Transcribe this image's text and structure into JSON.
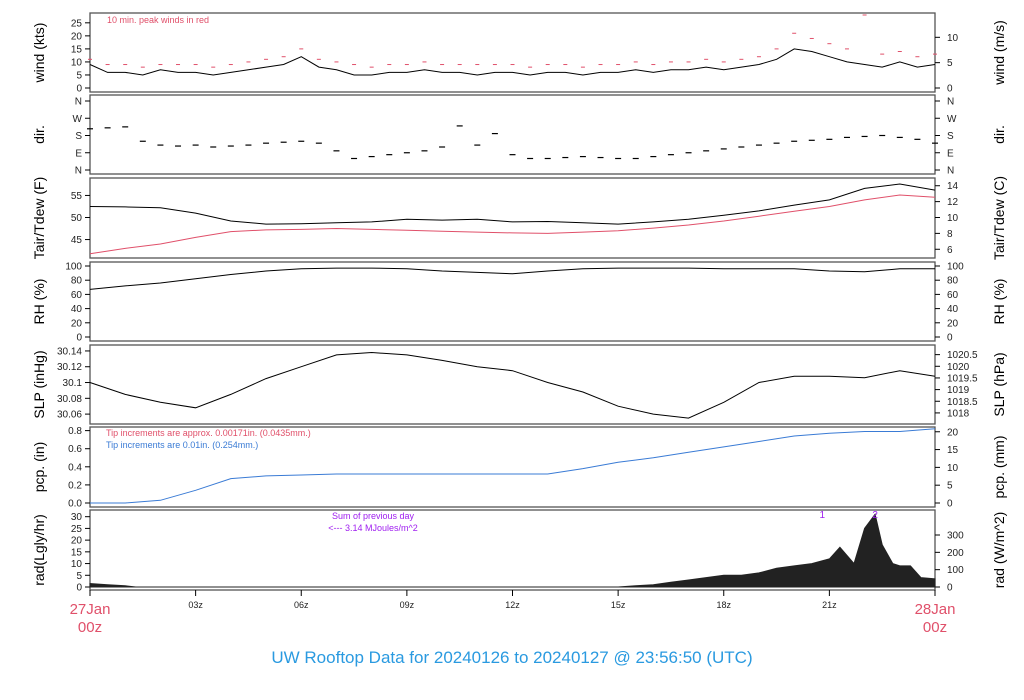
{
  "title": "UW Rooftop Data for 20240126  to  20240127 @ 23:56:50  (UTC)",
  "colors": {
    "accent_red": "#e0506a",
    "blue": "#3a7bd5",
    "purple": "#a020f0",
    "line": "#000000",
    "title": "#2a9ae0"
  },
  "x_axis": {
    "start_label": [
      "27Jan",
      "00z"
    ],
    "end_label": [
      "28Jan",
      "00z"
    ],
    "ticks": [
      "03z",
      "06z",
      "09z",
      "12z",
      "15z",
      "18z",
      "21z"
    ],
    "tick_hours": [
      3,
      6,
      9,
      12,
      15,
      18,
      21
    ],
    "range_hours": [
      0,
      24
    ]
  },
  "chart_data": [
    {
      "type": "line",
      "id": "wind",
      "ylabel": "wind (kts)",
      "ylabel_right": "wind (m/s)",
      "ylim": [
        0,
        28
      ],
      "yticks": [
        0,
        5,
        10,
        15,
        20,
        25
      ],
      "yticks_right": [
        0,
        5,
        10
      ],
      "annotation": "10 min. peak winds in red",
      "x": [
        0,
        0.5,
        1,
        1.5,
        2,
        2.5,
        3,
        3.5,
        4,
        4.5,
        5,
        5.5,
        6,
        6.5,
        7,
        7.5,
        8,
        8.5,
        9,
        9.5,
        10,
        10.5,
        11,
        11.5,
        12,
        12.5,
        13,
        13.5,
        14,
        14.5,
        15,
        15.5,
        16,
        16.5,
        17,
        17.5,
        18,
        18.5,
        19,
        19.5,
        20,
        20.5,
        21,
        21.5,
        22,
        22.5,
        23,
        23.5,
        24
      ],
      "series": [
        {
          "values": [
            9,
            6,
            6,
            5,
            7,
            6,
            6,
            5,
            6,
            7,
            8,
            9,
            12,
            8,
            7,
            5,
            5,
            6,
            6,
            7,
            6,
            6,
            5,
            6,
            6,
            5,
            6,
            6,
            5,
            6,
            6,
            7,
            6,
            7,
            7,
            8,
            7,
            8,
            9,
            11,
            15,
            14,
            12,
            10,
            9,
            8,
            10,
            8,
            9
          ]
        },
        {
          "name": "10 min. peak winds",
          "values": [
            11,
            9,
            9,
            8,
            9,
            9,
            9,
            8,
            9,
            10,
            11,
            12,
            15,
            11,
            10,
            9,
            8,
            9,
            9,
            10,
            9,
            9,
            9,
            9,
            9,
            8,
            9,
            9,
            8,
            9,
            9,
            10,
            9,
            10,
            10,
            11,
            10,
            11,
            12,
            15,
            21,
            19,
            17,
            15,
            28,
            13,
            14,
            12,
            13
          ]
        }
      ]
    },
    {
      "type": "scatter",
      "id": "dir",
      "ylabel": "dir.",
      "ylabel_right": "dir.",
      "ylim": [
        0,
        360
      ],
      "yticks": [
        "N",
        "E",
        "S",
        "W",
        "N"
      ],
      "ytick_values": [
        0,
        90,
        180,
        270,
        360
      ],
      "x": [
        0,
        0.5,
        1,
        1.5,
        2,
        2.5,
        3,
        3.5,
        4,
        4.5,
        5,
        5.5,
        6,
        6.5,
        7,
        7.5,
        8,
        8.5,
        9,
        9.5,
        10,
        10.5,
        11,
        11.5,
        12,
        12.5,
        13,
        13.5,
        14,
        14.5,
        15,
        15.5,
        16,
        16.5,
        17,
        17.5,
        18,
        18.5,
        19,
        19.5,
        20,
        20.5,
        21,
        21.5,
        22,
        22.5,
        23,
        23.5,
        24
      ],
      "values": [
        215,
        220,
        225,
        150,
        130,
        125,
        130,
        120,
        125,
        130,
        140,
        145,
        150,
        140,
        100,
        60,
        70,
        80,
        90,
        100,
        120,
        230,
        130,
        190,
        80,
        60,
        60,
        65,
        70,
        65,
        60,
        60,
        70,
        80,
        90,
        100,
        110,
        120,
        130,
        140,
        150,
        155,
        160,
        170,
        175,
        180,
        170,
        160,
        140
      ]
    },
    {
      "type": "line",
      "id": "temp",
      "ylabel": "Tair/Tdew (F)",
      "ylabel_right": "Tair/Tdew (C)",
      "ylim": [
        41.5,
        58.5
      ],
      "yticks": [
        45,
        50,
        55
      ],
      "yticks_right": [
        6,
        8,
        10,
        12,
        14
      ],
      "x": [
        0,
        1,
        2,
        3,
        4,
        5,
        6,
        7,
        8,
        9,
        10,
        11,
        12,
        13,
        14,
        15,
        16,
        17,
        18,
        19,
        20,
        21,
        22,
        23,
        24
      ],
      "series": [
        {
          "name": "Tair",
          "values": [
            52.5,
            52.4,
            52.2,
            51,
            49.2,
            48.5,
            48.6,
            48.8,
            49,
            49.6,
            49.4,
            49.6,
            49,
            49.1,
            48.8,
            48.5,
            49,
            49.6,
            50.5,
            51.5,
            52.8,
            54,
            56.6,
            57.6,
            56.2
          ]
        },
        {
          "name": "Tdew",
          "values": [
            41.8,
            43,
            44,
            45.5,
            46.8,
            47.2,
            47.3,
            47.5,
            47.3,
            47.1,
            46.9,
            46.7,
            46.5,
            46.4,
            46.7,
            47,
            47.6,
            48.3,
            49.2,
            50.3,
            51.4,
            52.5,
            54,
            55.1,
            54.6
          ]
        }
      ]
    },
    {
      "type": "line",
      "id": "rh",
      "ylabel": "RH (%)",
      "ylabel_right": "RH (%)",
      "ylim": [
        0,
        100
      ],
      "yticks": [
        0,
        20,
        40,
        60,
        80,
        100
      ],
      "x": [
        0,
        1,
        2,
        3,
        4,
        5,
        6,
        7,
        8,
        9,
        10,
        11,
        12,
        13,
        14,
        15,
        16,
        17,
        18,
        19,
        20,
        21,
        22,
        23,
        24
      ],
      "values": [
        67,
        72,
        76,
        82,
        88,
        93,
        96,
        97,
        97,
        96,
        93,
        91,
        89,
        93,
        96,
        97,
        97,
        97,
        96,
        96,
        96,
        93,
        92,
        96,
        96
      ]
    },
    {
      "type": "line",
      "id": "slp",
      "ylabel": "SLP (inHg)",
      "ylabel_right": "SLP (hPa)",
      "ylim": [
        30.05,
        30.145
      ],
      "yticks": [
        30.06,
        30.08,
        30.1,
        30.12,
        30.14
      ],
      "yticks_right": [
        1018,
        1018.5,
        1019,
        1019.5,
        1020,
        1020.5
      ],
      "x": [
        0,
        1,
        2,
        3,
        4,
        5,
        6,
        7,
        8,
        9,
        10,
        11,
        12,
        13,
        14,
        15,
        16,
        17,
        18,
        19,
        20,
        21,
        22,
        23,
        24
      ],
      "values": [
        30.1,
        30.085,
        30.075,
        30.068,
        30.085,
        30.105,
        30.12,
        30.135,
        30.138,
        30.135,
        30.128,
        30.12,
        30.115,
        30.1,
        30.088,
        30.07,
        30.06,
        30.055,
        30.075,
        30.1,
        30.108,
        30.108,
        30.106,
        30.115,
        30.108
      ]
    },
    {
      "type": "line",
      "id": "pcp",
      "ylabel": "pcp. (in)",
      "ylabel_right": "pcp. (mm)",
      "ylim": [
        0,
        0.84
      ],
      "yticks": [
        "0.0",
        "0.2",
        "0.4",
        "0.6",
        "0.8"
      ],
      "ytick_values": [
        0,
        0.2,
        0.4,
        0.6,
        0.8
      ],
      "yticks_right": [
        0,
        5,
        10,
        15,
        20
      ],
      "annotations": [
        "Tip increments are approx. 0.00171in. (0.0435mm.)",
        "Tip increments are 0.01in. (0.254mm.)"
      ],
      "x": [
        0,
        1,
        2,
        3,
        4,
        5,
        6,
        7,
        8,
        9,
        10,
        11,
        12,
        13,
        14,
        15,
        16,
        17,
        18,
        19,
        20,
        21,
        22,
        23,
        24
      ],
      "values": [
        0,
        0,
        0.03,
        0.14,
        0.27,
        0.3,
        0.31,
        0.32,
        0.32,
        0.32,
        0.32,
        0.32,
        0.32,
        0.32,
        0.38,
        0.45,
        0.5,
        0.56,
        0.62,
        0.68,
        0.74,
        0.77,
        0.79,
        0.79,
        0.82
      ]
    },
    {
      "type": "area",
      "id": "rad",
      "ylabel": "rad(Lgly/hr)",
      "ylabel_right": "rad (W/m^2)",
      "ylim": [
        0,
        32
      ],
      "yticks": [
        0,
        5,
        10,
        15,
        20,
        25,
        30
      ],
      "yticks_right": [
        0,
        100,
        200,
        300
      ],
      "annotation": [
        "Sum of previous day",
        "<--- 3.14 MJoules/m^2"
      ],
      "markers": [
        "1",
        "2"
      ],
      "marker_hours": [
        20.8,
        22.3
      ],
      "x": [
        0,
        0.5,
        1,
        1.3,
        15,
        15.5,
        16,
        16.5,
        17,
        17.5,
        18,
        18.5,
        19,
        19.5,
        20,
        20.5,
        21,
        21.3,
        21.7,
        22,
        22.3,
        22.5,
        22.8,
        23,
        23.3,
        23.6,
        24
      ],
      "values": [
        1.5,
        1,
        0.5,
        0,
        0,
        0.5,
        1,
        2,
        3,
        4,
        5,
        5,
        6,
        8,
        9,
        10,
        12,
        17,
        10,
        25,
        31,
        18,
        10,
        9,
        9,
        4,
        3.5
      ]
    }
  ]
}
